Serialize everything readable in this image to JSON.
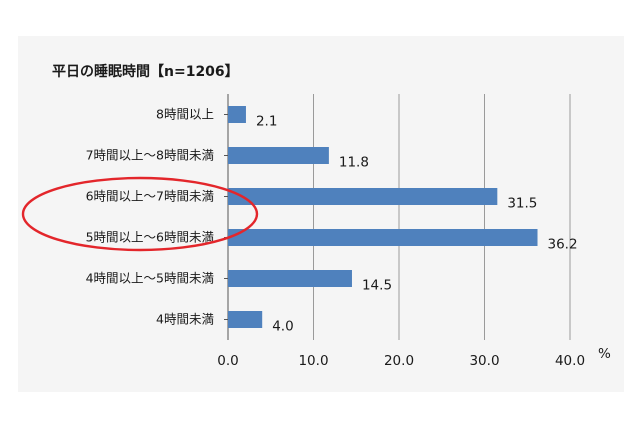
{
  "chart_data": {
    "type": "bar",
    "orientation": "horizontal",
    "title": "平日の睡眠時間【n=1206】",
    "categories": [
      "8時間以上",
      "7時間以上～8時間未満",
      "6時間以上～7時間未満",
      "5時間以上～6時間未満",
      "4時間以上～5時間未満",
      "4時間未満"
    ],
    "values": [
      2.1,
      11.8,
      31.5,
      36.2,
      14.5,
      4.0
    ],
    "value_labels": [
      "2.1",
      "11.8",
      "31.5",
      "36.2",
      "14.5",
      "4.0"
    ],
    "xlim": [
      0,
      40
    ],
    "xticks": [
      "0.0",
      "10.0",
      "20.0",
      "30.0",
      "40.0"
    ],
    "unit": "%",
    "grid": true,
    "bar_color": "#4f81bd",
    "highlight": {
      "shape": "ellipse",
      "color": "#e3262b",
      "categories": [
        "6時間以上～7時間未満",
        "5時間以上～6時間未満"
      ]
    }
  }
}
